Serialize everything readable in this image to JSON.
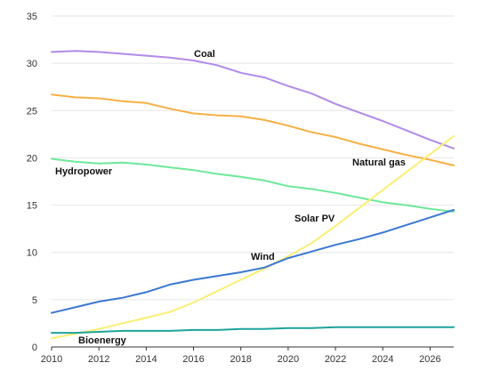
{
  "chart_data": {
    "type": "line",
    "title": "",
    "xlabel": "",
    "ylabel": "",
    "xlim": [
      2010,
      2027
    ],
    "ylim": [
      0,
      35
    ],
    "x_ticks": [
      "2010",
      "2012",
      "2014",
      "2016",
      "2018",
      "2020",
      "2022",
      "2024",
      "2026"
    ],
    "y_ticks": [
      "0",
      "5",
      "10",
      "15",
      "20",
      "25",
      "30",
      "35"
    ],
    "grid": true,
    "legend": "none (series labelled directly on lines)",
    "x": [
      2010,
      2011,
      2012,
      2013,
      2014,
      2015,
      2016,
      2017,
      2018,
      2019,
      2020,
      2021,
      2022,
      2023,
      2024,
      2025,
      2026,
      2027
    ],
    "series": [
      {
        "name": "Coal",
        "color": "#b28ae8",
        "values": [
          31.2,
          31.3,
          31.2,
          31.0,
          30.8,
          30.6,
          30.3,
          29.8,
          29.0,
          28.5,
          27.6,
          26.8,
          25.7,
          24.8,
          23.9,
          22.9,
          21.9,
          21.0
        ]
      },
      {
        "name": "Natural gas",
        "color": "#f7b043",
        "values": [
          26.7,
          26.4,
          26.3,
          26.0,
          25.8,
          25.2,
          24.7,
          24.5,
          24.4,
          24.0,
          23.4,
          22.7,
          22.2,
          21.5,
          20.9,
          20.3,
          19.8,
          19.2
        ]
      },
      {
        "name": "Hydropower",
        "color": "#6ee89a",
        "values": [
          19.9,
          19.6,
          19.4,
          19.5,
          19.3,
          19.0,
          18.7,
          18.3,
          18.0,
          17.6,
          17.0,
          16.7,
          16.3,
          15.8,
          15.3,
          15.0,
          14.6,
          14.3
        ]
      },
      {
        "name": "Solar PV",
        "color": "#fbee72",
        "values": [
          0.9,
          1.4,
          1.9,
          2.5,
          3.1,
          3.7,
          4.7,
          5.9,
          7.1,
          8.3,
          9.6,
          11.0,
          12.8,
          14.7,
          16.6,
          18.5,
          20.4,
          22.3
        ]
      },
      {
        "name": "Wind",
        "color": "#3b78d1",
        "values": [
          3.6,
          4.2,
          4.8,
          5.2,
          5.8,
          6.6,
          7.1,
          7.5,
          7.9,
          8.4,
          9.4,
          10.1,
          10.8,
          11.4,
          12.1,
          12.9,
          13.7,
          14.5
        ]
      },
      {
        "name": "Bioenergy",
        "color": "#1fa39a",
        "values": [
          1.5,
          1.5,
          1.6,
          1.7,
          1.7,
          1.7,
          1.8,
          1.8,
          1.9,
          1.9,
          2.0,
          2.0,
          2.1,
          2.1,
          2.1,
          2.1,
          2.1,
          2.1
        ]
      }
    ]
  }
}
